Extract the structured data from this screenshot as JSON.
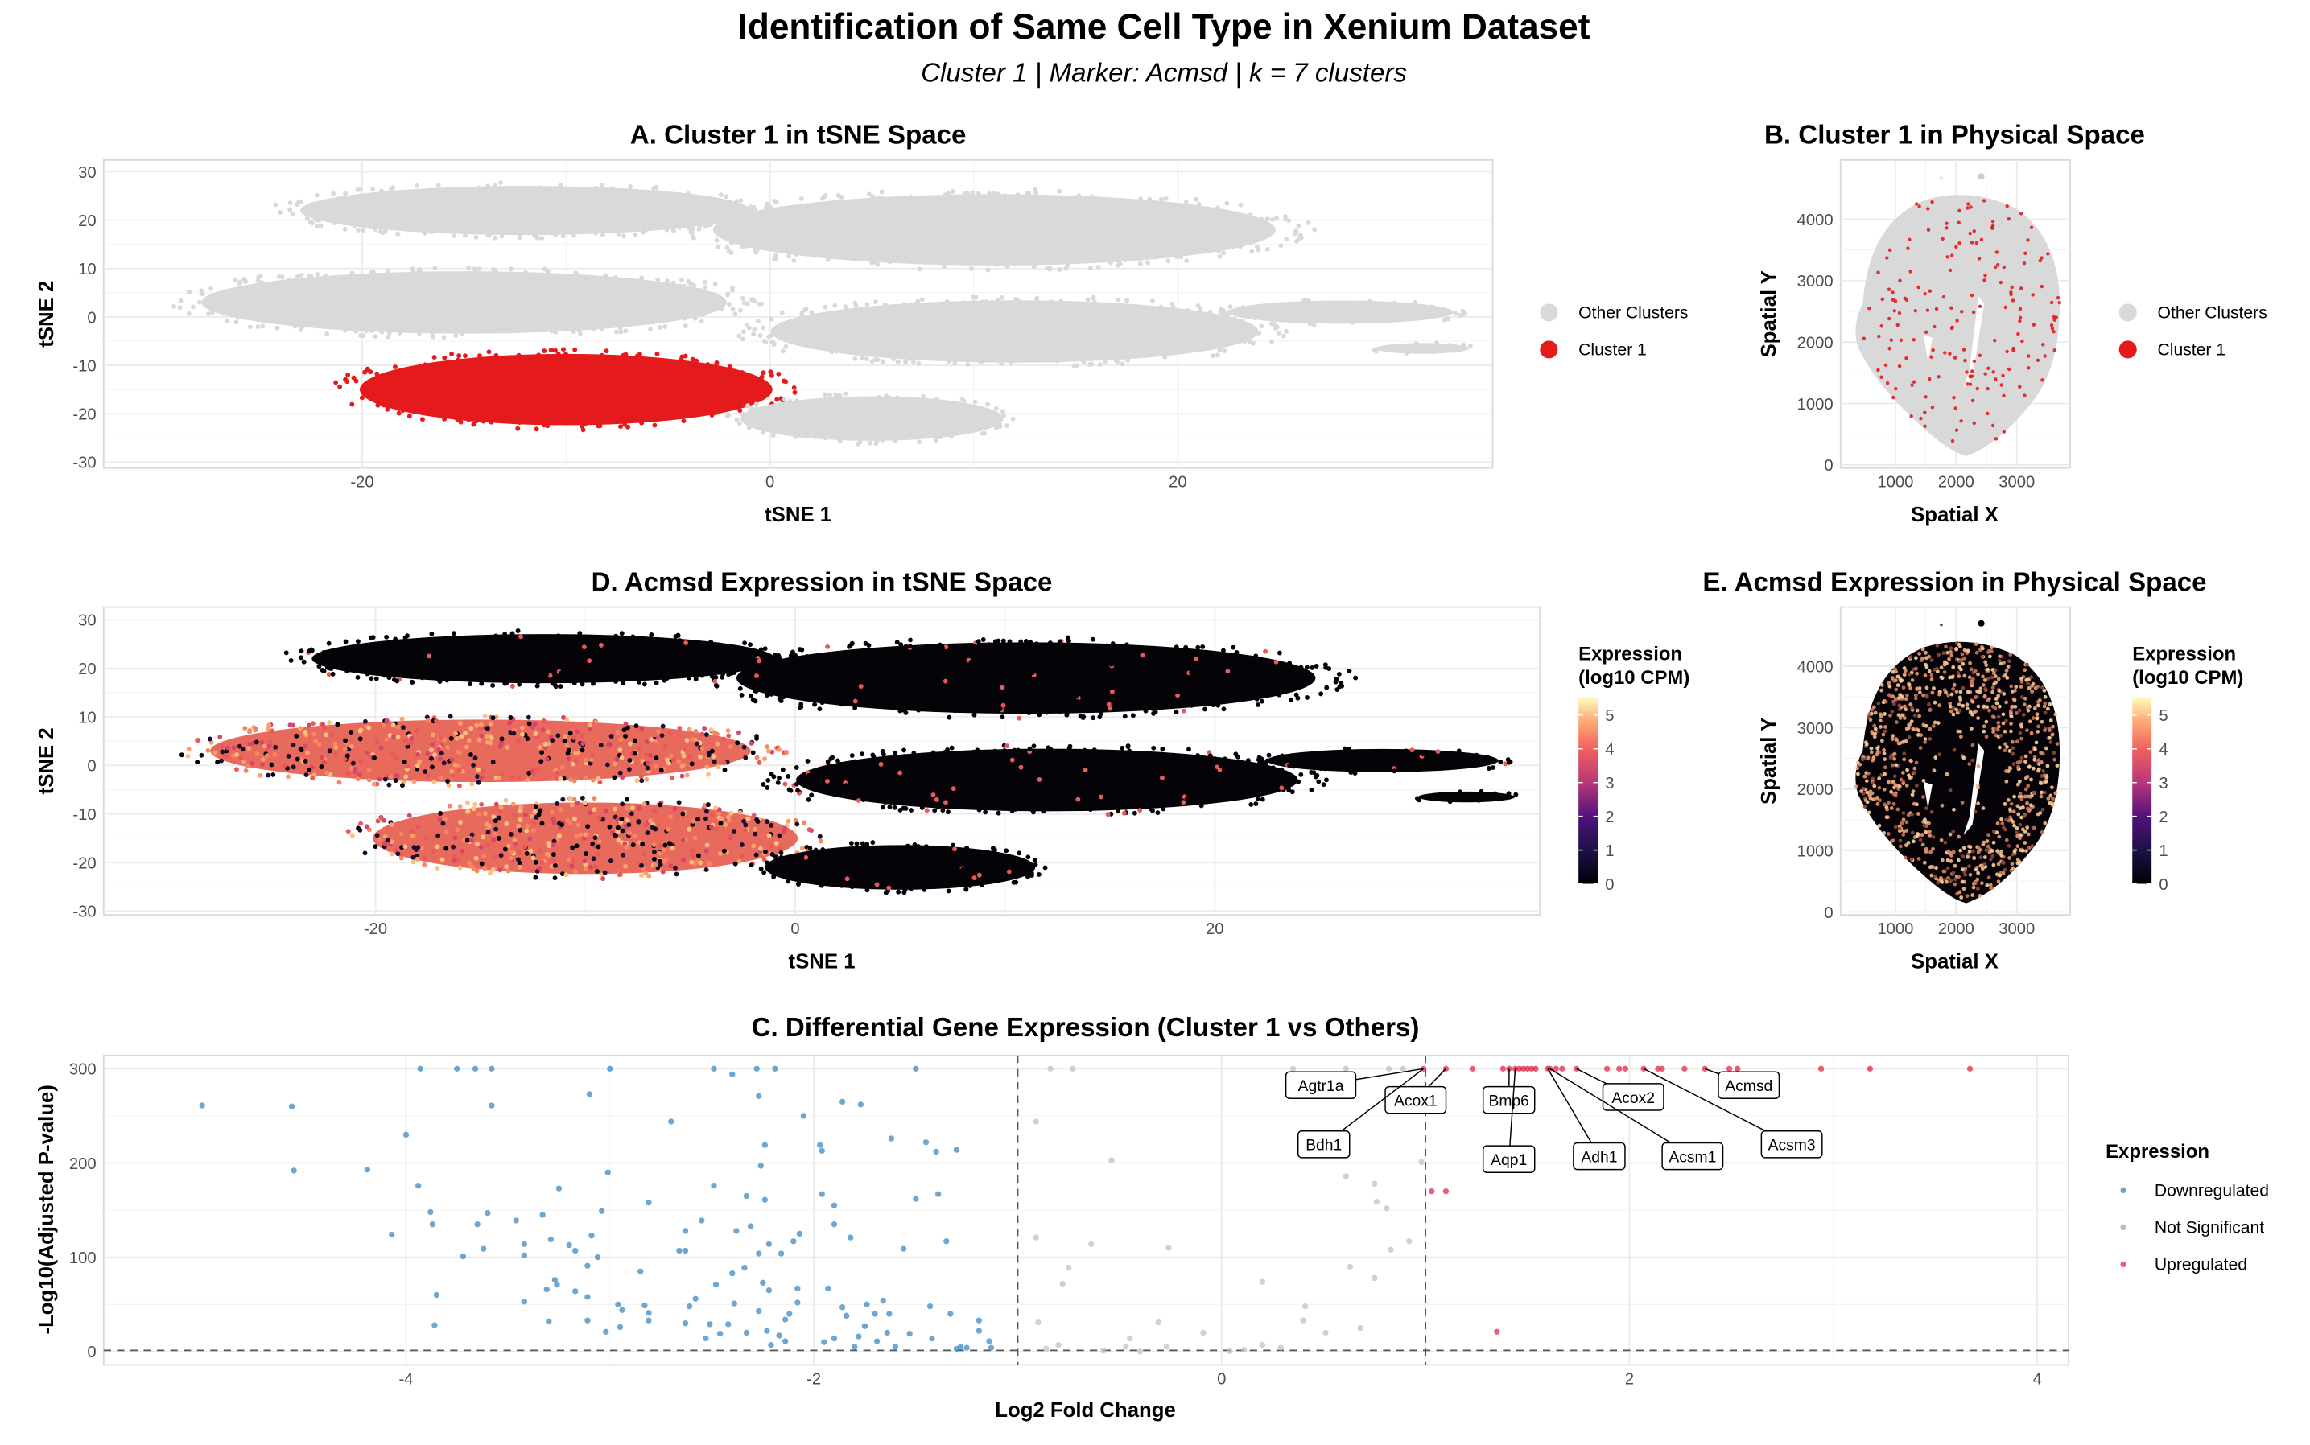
{
  "title": "Identification of Same Cell Type in Xenium Dataset",
  "subtitle": "Cluster 1 | Marker: Acmsd | k = 7 clusters",
  "colors": {
    "cluster1": "#e41a1c",
    "other_clusters": "#d9d9d9",
    "downregulated": "#3182bd",
    "not_significant": "#bdbdbd",
    "upregulated": "#e41a3c",
    "colorscale": "magma"
  },
  "panels": {
    "A": {
      "title": "A. Cluster 1 in tSNE Space",
      "xlabel": "tSNE 1",
      "ylabel": "tSNE 2",
      "xticks": [
        -20,
        0,
        20
      ],
      "yticks": [
        -30,
        -20,
        -10,
        0,
        10,
        20,
        30
      ],
      "legend": [
        "Other Clusters",
        "Cluster 1"
      ]
    },
    "B": {
      "title": "B. Cluster 1 in Physical Space",
      "xlabel": "Spatial X",
      "ylabel": "Spatial Y",
      "xticks": [
        1000,
        2000,
        3000
      ],
      "yticks": [
        0,
        1000,
        2000,
        3000,
        4000
      ],
      "legend": [
        "Other Clusters",
        "Cluster 1"
      ]
    },
    "D": {
      "title": "D. Acmsd Expression in tSNE Space",
      "xlabel": "tSNE 1",
      "ylabel": "tSNE 2",
      "xticks": [
        -20,
        0,
        20
      ],
      "yticks": [
        -30,
        -20,
        -10,
        0,
        10,
        20,
        30
      ],
      "legend_title_1": "Expression",
      "legend_title_2": "(log10 CPM)",
      "colorbar_ticks": [
        0,
        1,
        2,
        3,
        4,
        5
      ]
    },
    "E": {
      "title": "E. Acmsd Expression in Physical Space",
      "xlabel": "Spatial X",
      "ylabel": "Spatial Y",
      "xticks": [
        1000,
        2000,
        3000
      ],
      "yticks": [
        0,
        1000,
        2000,
        3000,
        4000
      ],
      "legend_title_1": "Expression",
      "legend_title_2": "(log10 CPM)",
      "colorbar_ticks": [
        0,
        1,
        2,
        3,
        4,
        5
      ]
    }
  },
  "chart_data": [
    {
      "type": "scatter",
      "title": "C. Differential Gene Expression (Cluster 1 vs Others)",
      "xlabel": "Log2 Fold Change",
      "ylabel": "-Log10(Adjusted P-value)",
      "xlim": [
        -5.4,
        4.1
      ],
      "ylim": [
        -15,
        315
      ],
      "xticks": [
        -4,
        -2,
        0,
        2,
        4
      ],
      "yticks": [
        0,
        100,
        200,
        300
      ],
      "grid": true,
      "threshold_lines": {
        "log2fc": [
          -1,
          1
        ],
        "neg_log10_p": 1.3
      },
      "legend_title": "Expression",
      "legend_position": "right",
      "series": [
        {
          "name": "Downregulated",
          "color": "#3182bd",
          "points": [
            [
              -5.0,
              261
            ],
            [
              -4.56,
              260
            ],
            [
              -4.55,
              192
            ],
            [
              -4.19,
              193
            ],
            [
              -4.0,
              230
            ],
            [
              -3.93,
              300
            ],
            [
              -3.75,
              300
            ],
            [
              -3.66,
              300
            ],
            [
              -3.58,
              300
            ],
            [
              -3.58,
              261
            ],
            [
              -3.94,
              176
            ],
            [
              -3.88,
              148
            ],
            [
              -3.87,
              135
            ],
            [
              -4.07,
              124
            ],
            [
              -3.85,
              60
            ],
            [
              -3.86,
              28
            ],
            [
              -3.72,
              101
            ],
            [
              -3.65,
              135
            ],
            [
              -3.62,
              109
            ],
            [
              -3.6,
              147
            ],
            [
              -3.46,
              139
            ],
            [
              -3.42,
              114
            ],
            [
              -3.42,
              102
            ],
            [
              -3.42,
              53
            ],
            [
              -3.33,
              145
            ],
            [
              -3.29,
              119
            ],
            [
              -3.25,
              173
            ],
            [
              -3.27,
              76
            ],
            [
              -3.26,
              71
            ],
            [
              -3.31,
              66
            ],
            [
              -3.3,
              32
            ],
            [
              -3.2,
              113
            ],
            [
              -3.17,
              64
            ],
            [
              -3.17,
              107
            ],
            [
              -3.1,
              273
            ],
            [
              -3.09,
              123
            ],
            [
              -3.06,
              100
            ],
            [
              -3.11,
              91
            ],
            [
              -3.11,
              58
            ],
            [
              -3.11,
              33
            ],
            [
              -3.04,
              149
            ],
            [
              -3.01,
              190
            ],
            [
              -3.0,
              300
            ],
            [
              -3.02,
              21
            ],
            [
              -2.96,
              50
            ],
            [
              -2.94,
              44
            ],
            [
              -2.95,
              26
            ],
            [
              -2.85,
              85
            ],
            [
              -2.83,
              49
            ],
            [
              -2.81,
              41
            ],
            [
              -2.81,
              33
            ],
            [
              -2.81,
              158
            ],
            [
              -2.7,
              244
            ],
            [
              -2.66,
              107
            ],
            [
              -2.63,
              107
            ],
            [
              -2.63,
              128
            ],
            [
              -2.63,
              30
            ],
            [
              -2.61,
              48
            ],
            [
              -2.58,
              56
            ],
            [
              -2.55,
              139
            ],
            [
              -2.53,
              14
            ],
            [
              -2.51,
              29
            ],
            [
              -2.49,
              300
            ],
            [
              -2.48,
              71
            ],
            [
              -2.49,
              176
            ],
            [
              -2.46,
              19
            ],
            [
              -2.42,
              29
            ],
            [
              -2.4,
              83
            ],
            [
              -2.4,
              294
            ],
            [
              -2.39,
              51
            ],
            [
              -2.38,
              128
            ],
            [
              -2.34,
              89
            ],
            [
              -2.33,
              165
            ],
            [
              -2.33,
              20
            ],
            [
              -2.31,
              133
            ],
            [
              -2.28,
              300
            ],
            [
              -2.27,
              271
            ],
            [
              -2.27,
              43
            ],
            [
              -2.27,
              104
            ],
            [
              -2.25,
              73
            ],
            [
              -2.26,
              197
            ],
            [
              -2.24,
              219
            ],
            [
              -2.24,
              161
            ],
            [
              -2.23,
              22
            ],
            [
              -2.22,
              65
            ],
            [
              -2.22,
              114
            ],
            [
              -2.21,
              7
            ],
            [
              -2.19,
              300
            ],
            [
              -2.17,
              17
            ],
            [
              -2.16,
              104
            ],
            [
              -2.14,
              11
            ],
            [
              -2.14,
              34
            ],
            [
              -2.12,
              40
            ],
            [
              -2.1,
              117
            ],
            [
              -2.08,
              67
            ],
            [
              -2.08,
              52
            ],
            [
              -2.07,
              125
            ],
            [
              -2.05,
              250
            ],
            [
              -1.97,
              219
            ],
            [
              -1.96,
              213
            ],
            [
              -1.96,
              167
            ],
            [
              -1.95,
              10
            ],
            [
              -1.93,
              67
            ],
            [
              -1.9,
              155
            ],
            [
              -1.9,
              135
            ],
            [
              -1.9,
              14
            ],
            [
              -1.86,
              265
            ],
            [
              -1.86,
              47
            ],
            [
              -1.82,
              121
            ],
            [
              -1.84,
              38
            ],
            [
              -1.8,
              5
            ],
            [
              -1.78,
              16
            ],
            [
              -1.77,
              262
            ],
            [
              -1.75,
              27
            ],
            [
              -1.74,
              50
            ],
            [
              -1.7,
              40
            ],
            [
              -1.69,
              11
            ],
            [
              -1.66,
              54
            ],
            [
              -1.64,
              20
            ],
            [
              -1.63,
              40
            ],
            [
              -1.62,
              226
            ],
            [
              -1.6,
              5
            ],
            [
              -1.56,
              109
            ],
            [
              -1.53,
              19
            ],
            [
              -1.5,
              162
            ],
            [
              -1.5,
              300
            ],
            [
              -1.45,
              222
            ],
            [
              -1.43,
              48
            ],
            [
              -1.42,
              14
            ],
            [
              -1.4,
              212
            ],
            [
              -1.39,
              167
            ],
            [
              -1.35,
              117
            ],
            [
              -1.33,
              40
            ],
            [
              -1.3,
              214
            ],
            [
              -1.28,
              5
            ],
            [
              -1.25,
              4
            ],
            [
              -1.19,
              33
            ],
            [
              -1.19,
              22
            ],
            [
              -1.14,
              11
            ],
            [
              -1.13,
              4
            ],
            [
              -1.3,
              3
            ]
          ]
        },
        {
          "name": "Not Significant",
          "color": "#bdbdbd",
          "points": [
            [
              -0.84,
              300
            ],
            [
              -0.73,
              300
            ],
            [
              -0.91,
              244
            ],
            [
              -0.54,
              203
            ],
            [
              -0.91,
              121
            ],
            [
              -0.64,
              114
            ],
            [
              -0.26,
              110
            ],
            [
              -0.75,
              89
            ],
            [
              -0.78,
              72
            ],
            [
              -0.9,
              31
            ],
            [
              -0.31,
              31
            ],
            [
              -0.09,
              20
            ],
            [
              -0.45,
              14
            ],
            [
              -0.8,
              7
            ],
            [
              -0.47,
              5
            ],
            [
              -0.27,
              5
            ],
            [
              -0.4,
              0
            ],
            [
              0.04,
              0.5
            ],
            [
              0.11,
              2
            ],
            [
              0.2,
              7
            ],
            [
              0.2,
              74
            ],
            [
              0.29,
              4
            ],
            [
              0.35,
              300
            ],
            [
              0.61,
              300
            ],
            [
              0.82,
              300
            ],
            [
              0.89,
              300
            ],
            [
              0.41,
              48
            ],
            [
              0.4,
              33
            ],
            [
              0.51,
              20
            ],
            [
              0.61,
              186
            ],
            [
              0.75,
              178
            ],
            [
              0.76,
              159
            ],
            [
              0.81,
              152
            ],
            [
              0.92,
              117
            ],
            [
              0.83,
              108
            ],
            [
              0.63,
              90
            ],
            [
              0.75,
              78
            ],
            [
              0.68,
              25
            ],
            [
              0.98,
              201
            ],
            [
              -0.86,
              3
            ],
            [
              -0.58,
              1
            ]
          ]
        },
        {
          "name": "Upregulated",
          "color": "#e41a3c",
          "points": [
            [
              0.99,
              300
            ],
            [
              1.1,
              300
            ],
            [
              1.23,
              300
            ],
            [
              1.38,
              300
            ],
            [
              1.41,
              300
            ],
            [
              1.44,
              300
            ],
            [
              1.46,
              300
            ],
            [
              1.48,
              300
            ],
            [
              1.5,
              300
            ],
            [
              1.52,
              300
            ],
            [
              1.54,
              300
            ],
            [
              1.6,
              300
            ],
            [
              1.61,
              300
            ],
            [
              1.64,
              300
            ],
            [
              1.67,
              300
            ],
            [
              1.74,
              300
            ],
            [
              1.89,
              300
            ],
            [
              1.95,
              300
            ],
            [
              1.98,
              300
            ],
            [
              2.07,
              300
            ],
            [
              2.14,
              300
            ],
            [
              2.16,
              300
            ],
            [
              2.27,
              300
            ],
            [
              2.37,
              300
            ],
            [
              2.49,
              300
            ],
            [
              2.53,
              300
            ],
            [
              2.94,
              300
            ],
            [
              3.18,
              300
            ],
            [
              3.67,
              300
            ],
            [
              1.03,
              170
            ],
            [
              1.1,
              170
            ],
            [
              1.35,
              21
            ]
          ]
        }
      ],
      "labels": [
        {
          "gene": "Agtr1a",
          "x": 0.99,
          "y": 300
        },
        {
          "gene": "Acox1",
          "x": 1.1,
          "y": 300
        },
        {
          "gene": "Bdh1",
          "x": 0.99,
          "y": 300
        },
        {
          "gene": "Bmp6",
          "x": 1.41,
          "y": 300
        },
        {
          "gene": "Aqp1",
          "x": 1.44,
          "y": 300
        },
        {
          "gene": "Adh1",
          "x": 1.6,
          "y": 300
        },
        {
          "gene": "Acox2",
          "x": 1.74,
          "y": 300
        },
        {
          "gene": "Acsm1",
          "x": 1.61,
          "y": 300
        },
        {
          "gene": "Acmsd",
          "x": 2.37,
          "y": 300
        },
        {
          "gene": "Acsm3",
          "x": 2.07,
          "y": 300
        }
      ]
    }
  ]
}
